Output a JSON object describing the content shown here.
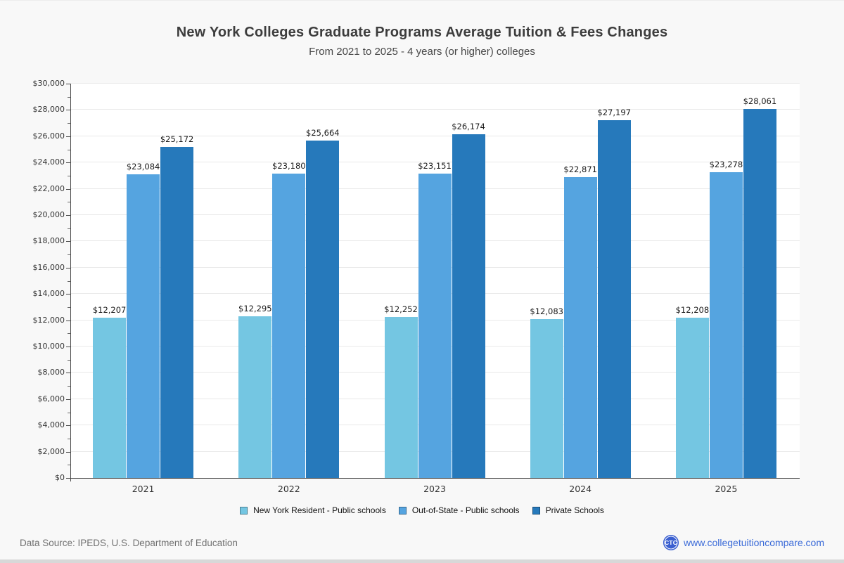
{
  "page": {
    "footer": {
      "data_source": "Data Source: IPEDS, U.S. Department of Education",
      "website": "www.collegetuitioncompare.com",
      "logo_text": "CTC"
    }
  },
  "chart_data": {
    "type": "bar",
    "title": "New York Colleges Graduate Programs Average Tuition & Fees Changes",
    "subtitle": "From 2021 to 2025 - 4 years (or higher) colleges",
    "categories": [
      "2021",
      "2022",
      "2023",
      "2024",
      "2025"
    ],
    "series": [
      {
        "name": "New York Resident - Public schools",
        "color": "#74C6E2",
        "values": [
          12207,
          12295,
          12252,
          12083,
          12208
        ]
      },
      {
        "name": "Out-of-State - Public schools",
        "color": "#55A4E0",
        "values": [
          23084,
          23180,
          23151,
          22871,
          23278
        ]
      },
      {
        "name": "Private Schools",
        "color": "#2679BB",
        "values": [
          25172,
          25664,
          26174,
          27197,
          28061
        ]
      }
    ],
    "xlabel": "",
    "ylabel": "",
    "ylim": [
      0,
      30000
    ],
    "y_major_step": 2000,
    "y_minor_step": 1000,
    "y_tick_labels": [
      "$0",
      "$2,000",
      "$4,000",
      "$6,000",
      "$8,000",
      "$10,000",
      "$12,000",
      "$14,000",
      "$16,000",
      "$18,000",
      "$20,000",
      "$22,000",
      "$24,000",
      "$26,000",
      "$28,000",
      "$30,000"
    ],
    "grid": true,
    "legend_position": "bottom",
    "value_label_prefix": "$"
  }
}
